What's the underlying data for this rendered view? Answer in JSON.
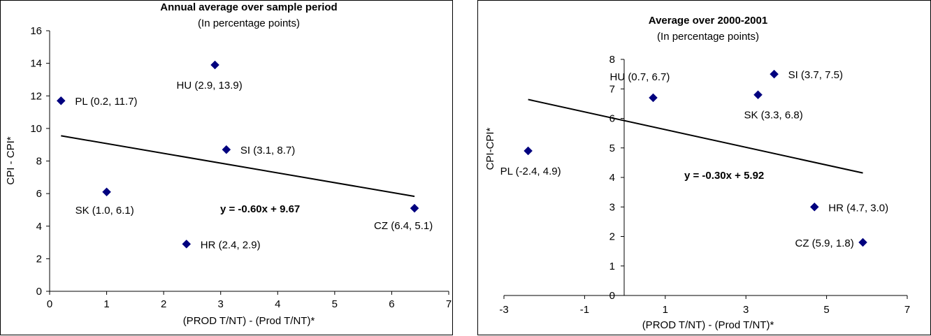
{
  "chart_data": [
    {
      "type": "scatter",
      "title": "Annual average over sample period",
      "subtitle": "(In percentage points)",
      "xlabel": "(PROD T/NT) - (Prod T/NT)*",
      "ylabel": "CPI - CPI*",
      "xlim": [
        0,
        7
      ],
      "ylim": [
        0,
        16
      ],
      "xticks": [
        "0",
        "1",
        "2",
        "3",
        "4",
        "5",
        "6",
        "7"
      ],
      "yticks": [
        "0",
        "2",
        "4",
        "6",
        "8",
        "10",
        "12",
        "14",
        "16"
      ],
      "points": [
        {
          "label": "PL (0.2, 11.7)",
          "x": 0.2,
          "y": 11.7
        },
        {
          "label": "HU (2.9, 13.9)",
          "x": 2.9,
          "y": 13.9
        },
        {
          "label": "SI (3.1, 8.7)",
          "x": 3.1,
          "y": 8.7
        },
        {
          "label": "SK (1.0, 6.1)",
          "x": 1.0,
          "y": 6.1
        },
        {
          "label": "HR (2.4, 2.9)",
          "x": 2.4,
          "y": 2.9
        },
        {
          "label": "CZ (6.4, 5.1)",
          "x": 6.4,
          "y": 5.1
        }
      ],
      "trendline": {
        "equation": "y = -0.60x + 9.67",
        "slope": -0.6,
        "intercept": 9.67,
        "x_range": [
          0.2,
          6.4
        ]
      },
      "grid": false,
      "legend": "none",
      "marker_color": "#00007f",
      "line_color": "#000000"
    },
    {
      "type": "scatter",
      "title": "Average over 2000-2001",
      "subtitle": "(In percentage points)",
      "xlabel": "(PROD T/NT) - (Prod T/NT)*",
      "ylabel": "CPI-CPI*",
      "xlim": [
        -3,
        7
      ],
      "ylim": [
        0,
        8
      ],
      "xticks": [
        "-3",
        "-1",
        "1",
        "3",
        "5",
        "7"
      ],
      "yticks": [
        "0",
        "1",
        "2",
        "3",
        "4",
        "5",
        "6",
        "7",
        "8"
      ],
      "points": [
        {
          "label": "PL (-2.4, 4.9)",
          "x": -2.4,
          "y": 4.9
        },
        {
          "label": "HU (0.7, 6.7)",
          "x": 0.7,
          "y": 6.7
        },
        {
          "label": "SI (3.7, 7.5)",
          "x": 3.7,
          "y": 7.5
        },
        {
          "label": "SK (3.3, 6.8)",
          "x": 3.3,
          "y": 6.8
        },
        {
          "label": "HR (4.7, 3.0)",
          "x": 4.7,
          "y": 3.0
        },
        {
          "label": "CZ (5.9, 1.8)",
          "x": 5.9,
          "y": 1.8
        }
      ],
      "trendline": {
        "equation": "y = -0.30x + 5.92",
        "slope": -0.3,
        "intercept": 5.92,
        "x_range": [
          -2.4,
          5.9
        ]
      },
      "grid": false,
      "legend": "none",
      "marker_color": "#00007f",
      "line_color": "#000000"
    }
  ]
}
